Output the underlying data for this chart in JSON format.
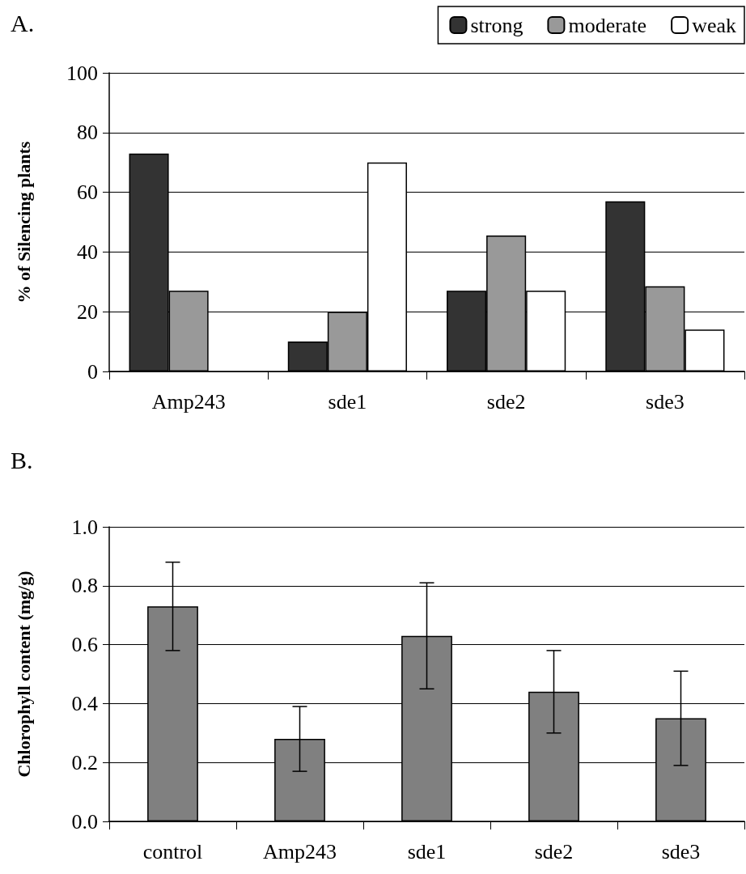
{
  "chart_data": [
    {
      "type": "bar",
      "title": "A.",
      "ylabel": "% of Silencing plants",
      "categories": [
        "Amp243",
        "sde1",
        "sde2",
        "sde3"
      ],
      "series": [
        {
          "name": "strong",
          "color": "#333333",
          "values": [
            73,
            10,
            27,
            57
          ]
        },
        {
          "name": "moderate",
          "color": "#999999",
          "values": [
            27,
            20,
            45.5,
            28.5
          ]
        },
        {
          "name": "weak",
          "color": "#ffffff",
          "values": [
            null,
            70,
            27,
            14
          ]
        }
      ],
      "ylim": [
        0,
        100
      ],
      "yticks": [
        0,
        20,
        40,
        60,
        80,
        100
      ],
      "grid": "y",
      "legend": "top right"
    },
    {
      "type": "bar",
      "title": "B.",
      "ylabel": "Chlorophyll content (mg/g)",
      "categories": [
        "control",
        "Amp243",
        "sde1",
        "sde2",
        "sde3"
      ],
      "values": [
        0.73,
        0.28,
        0.63,
        0.44,
        0.35
      ],
      "color": "#808080",
      "errors": [
        [
          0.58,
          0.88
        ],
        [
          0.17,
          0.39
        ],
        [
          0.45,
          0.81
        ],
        [
          0.3,
          0.58
        ],
        [
          0.19,
          0.51
        ]
      ],
      "ylim": [
        0,
        1
      ],
      "yticks": [
        {
          "value": 0,
          "label": "0.0"
        },
        {
          "value": 0.2,
          "label": "0.2"
        },
        {
          "value": 0.4,
          "label": "0.4"
        },
        {
          "value": 0.6,
          "label": "0.6"
        },
        {
          "value": 0.8,
          "label": "0.8"
        },
        {
          "value": 1,
          "label": "1.0"
        }
      ],
      "grid": "y"
    }
  ]
}
